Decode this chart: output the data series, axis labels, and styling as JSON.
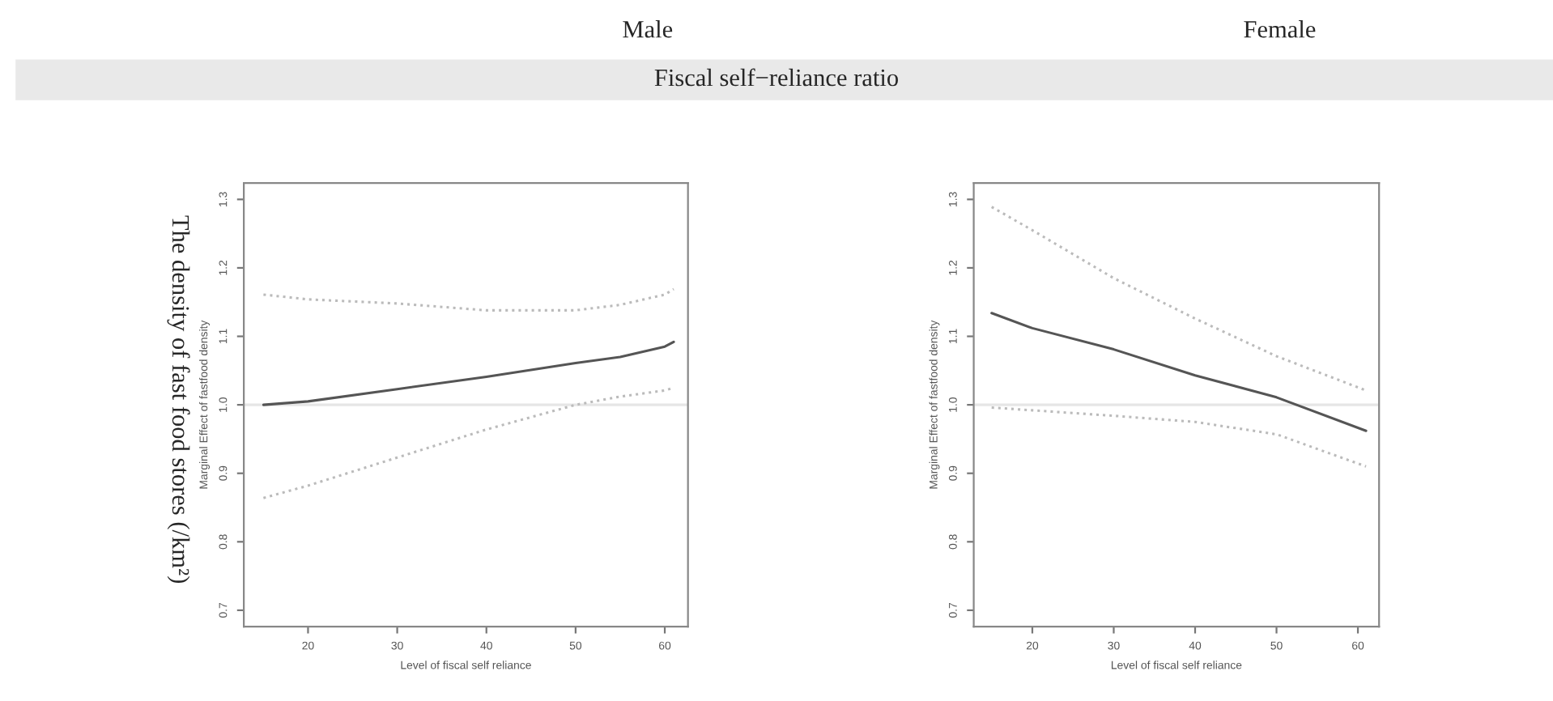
{
  "chart_data": [
    {
      "type": "line",
      "title": "Male",
      "xlabel": "Level of fiscal self reliance",
      "ylabel": "Marginal Effect of fastfood density",
      "annotations": [
        "Fiscal self−reliance ratio",
        "The density of fast food stores (/km²)"
      ],
      "xlim": [
        12.8,
        62.6
      ],
      "ylim": [
        0.676,
        1.324
      ],
      "xticks": [
        20,
        30,
        40,
        50,
        60
      ],
      "yticks": [
        0.7,
        0.8,
        0.9,
        {
          "value": 1,
          "label": "1.0"
        },
        1.1,
        1.2,
        1.3
      ],
      "grid": false,
      "ref_lines": [
        {
          "axis": "y",
          "value": 1.0,
          "color": "#e6e6e6"
        }
      ],
      "x": [
        15,
        20,
        30,
        40,
        50,
        55,
        60,
        61
      ],
      "series": [
        {
          "color": "#555555",
          "line_style": "solid",
          "values": [
            1.0,
            1.005,
            1.023,
            1.041,
            1.061,
            1.07,
            1.085,
            1.092
          ]
        },
        {
          "color": "#bbbbbb",
          "line_style": "dotted",
          "values": [
            1.161,
            1.154,
            1.148,
            1.138,
            1.138,
            1.146,
            1.161,
            1.169
          ]
        },
        {
          "color": "#bbbbbb",
          "line_style": "dotted",
          "values": [
            0.864,
            0.882,
            0.923,
            0.964,
            1.0,
            1.012,
            1.021,
            1.025
          ]
        }
      ]
    },
    {
      "type": "line",
      "title": "Female",
      "xlabel": "Level of fiscal self reliance",
      "ylabel": "Marginal Effect of fastfood density",
      "xlim": [
        12.8,
        62.6
      ],
      "ylim": [
        0.676,
        1.324
      ],
      "xticks": [
        20,
        30,
        40,
        50,
        60
      ],
      "yticks": [
        0.7,
        0.8,
        0.9,
        {
          "value": 1,
          "label": "1.0"
        },
        1.1,
        1.2,
        1.3
      ],
      "grid": false,
      "ref_lines": [
        {
          "axis": "y",
          "value": 1.0,
          "color": "#e6e6e6"
        }
      ],
      "x": [
        15,
        20,
        30,
        40,
        50,
        61
      ],
      "series": [
        {
          "color": "#555555",
          "line_style": "solid",
          "values": [
            1.134,
            1.112,
            1.081,
            1.043,
            1.011,
            0.962
          ]
        },
        {
          "color": "#bbbbbb",
          "line_style": "dotted",
          "values": [
            1.289,
            1.255,
            1.185,
            1.126,
            1.071,
            1.021
          ]
        },
        {
          "color": "#bbbbbb",
          "line_style": "dotted",
          "values": [
            0.996,
            0.992,
            0.984,
            0.975,
            0.957,
            0.91
          ]
        }
      ]
    }
  ]
}
